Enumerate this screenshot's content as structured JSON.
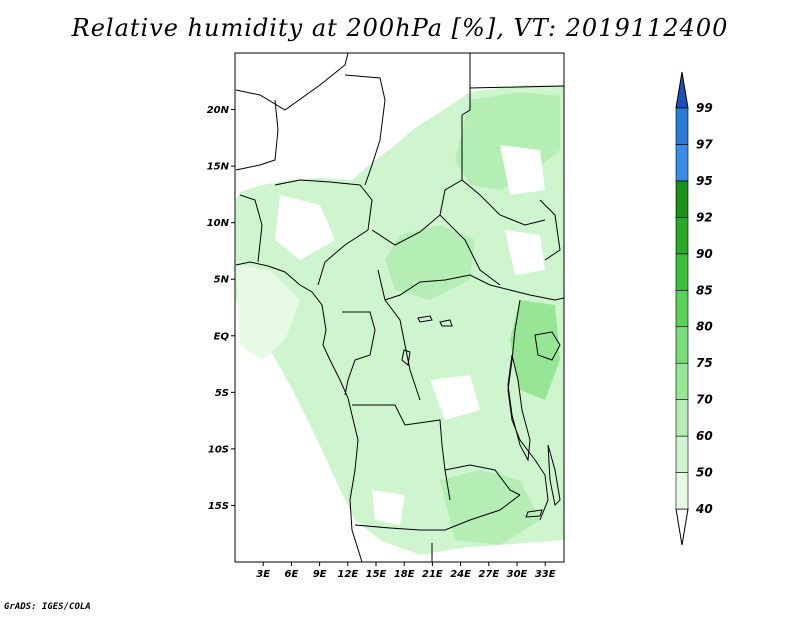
{
  "title": "Relative humidity at 200hPa [%], VT: 2019112400",
  "credit": "GrADS: IGES/COLA",
  "map": {
    "lon_range": [
      0,
      35
    ],
    "lat_range": [
      -20,
      25
    ],
    "lat_ticks": [
      {
        "v": 20,
        "label": "20N"
      },
      {
        "v": 15,
        "label": "15N"
      },
      {
        "v": 10,
        "label": "10N"
      },
      {
        "v": 5,
        "label": "5N"
      },
      {
        "v": 0,
        "label": "EQ"
      },
      {
        "v": -5,
        "label": "5S"
      },
      {
        "v": -10,
        "label": "10S"
      },
      {
        "v": -15,
        "label": "15S"
      }
    ],
    "lon_ticks": [
      {
        "v": 3,
        "label": "3E"
      },
      {
        "v": 6,
        "label": "6E"
      },
      {
        "v": 9,
        "label": "9E"
      },
      {
        "v": 12,
        "label": "12E"
      },
      {
        "v": 15,
        "label": "15E"
      },
      {
        "v": 18,
        "label": "18E"
      },
      {
        "v": 21,
        "label": "21E"
      },
      {
        "v": 24,
        "label": "24E"
      },
      {
        "v": 27,
        "label": "27E"
      },
      {
        "v": 30,
        "label": "30E"
      },
      {
        "v": 33,
        "label": "33E"
      }
    ]
  },
  "colorbar": {
    "levels": [
      "40",
      "50",
      "60",
      "70",
      "75",
      "80",
      "85",
      "90",
      "92",
      "95",
      "97",
      "99"
    ],
    "colors": [
      "#e6fae6",
      "#cff5cf",
      "#b4eeb4",
      "#96e696",
      "#78dc78",
      "#5ad25a",
      "#3cc03c",
      "#28aa28",
      "#199119",
      "#3c8ce6",
      "#2a78d8",
      "#1e5ac8"
    ],
    "below_color": "#ffffff",
    "above_color": "#1e4fbf"
  }
}
